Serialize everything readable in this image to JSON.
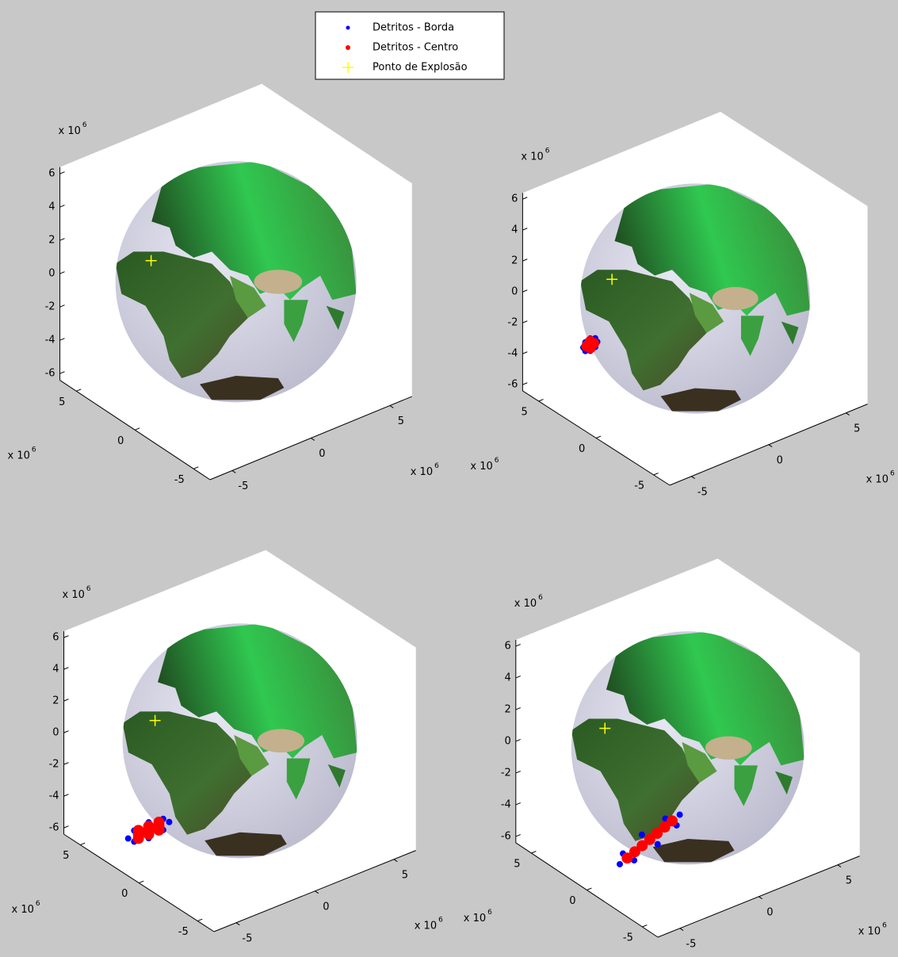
{
  "chart_data": [
    {
      "type": "scatter3d",
      "xlim": [
        -6.4,
        6.4
      ],
      "ylim": [
        -6.4,
        6.4
      ],
      "zlim": [
        -6.4,
        6.4
      ],
      "xticks": [
        -5,
        0,
        5
      ],
      "yticks": [
        -5,
        0,
        5
      ],
      "zticks": [
        -6,
        -4,
        -2,
        0,
        2,
        4,
        6
      ],
      "exponent_label": "x 10",
      "exponent": "6",
      "legend": "north",
      "series": [
        {
          "name": "Detritos - Borda",
          "color": "#0000ff",
          "x": [],
          "y": [],
          "z": []
        },
        {
          "name": "Detritos - Centro",
          "color": "#ff0000",
          "x": [],
          "y": [],
          "z": []
        },
        {
          "name": "Ponto de Explosão",
          "color": "#ffff00",
          "x": [
            -3.05
          ],
          "y": [
            3.13
          ],
          "z": [
            1
          ]
        }
      ]
    },
    {
      "type": "scatter3d",
      "xlim": [
        -6.4,
        6.4
      ],
      "ylim": [
        -6.4,
        6.4
      ],
      "zlim": [
        -6.4,
        6.4
      ],
      "xticks": [
        -5,
        0,
        5
      ],
      "yticks": [
        -5,
        0,
        5
      ],
      "zticks": [
        -6,
        -4,
        -2,
        0,
        2,
        4,
        6
      ],
      "exponent_label": "x 10",
      "exponent": "6",
      "series": [
        {
          "color": "#0000ff",
          "x": [
            -4.1,
            -4.23,
            -4.55,
            -4.87,
            -5,
            -4.87,
            -4.55,
            -4.23
          ],
          "y": [
            3,
            3,
            3,
            3,
            3,
            3,
            3,
            3
          ],
          "z": [
            -2.55,
            -2.27,
            -2.15,
            -2.27,
            -2.55,
            -2.83,
            -2.95,
            -2.83
          ]
        },
        {
          "color": "#ff0000",
          "x": [
            -4.55,
            -4.33,
            -4.77,
            -4.55,
            -4.55
          ],
          "y": [
            3,
            3,
            3,
            3,
            3
          ],
          "z": [
            -2.55,
            -2.55,
            -2.55,
            -2.35,
            -2.75
          ]
        },
        {
          "color": "#ffff00",
          "x": [
            -3.05
          ],
          "y": [
            3.13
          ],
          "z": [
            1
          ]
        }
      ]
    },
    {
      "type": "scatter3d",
      "xlim": [
        -6.4,
        6.4
      ],
      "ylim": [
        -6.4,
        6.4
      ],
      "zlim": [
        -6.4,
        6.4
      ],
      "xticks": [
        -5,
        0,
        5
      ],
      "yticks": [
        -5,
        0,
        5
      ],
      "zticks": [
        -6,
        -4,
        -2,
        0,
        2,
        4,
        6
      ],
      "exponent_label": "x 10",
      "exponent": "6",
      "series": [
        {
          "color": "#0000ff",
          "x": [
            -2.25,
            -2.63,
            -3.55,
            -4.47,
            -4.85,
            -4.47,
            -3.55,
            -2.63
          ],
          "y": [
            3,
            3,
            3,
            3,
            3,
            3,
            3,
            3
          ],
          "z": [
            -5.66,
            -5.31,
            -5.16,
            -5.31,
            -5.66,
            -6.01,
            -6.16,
            -6.01
          ]
        },
        {
          "color": "#ff0000",
          "x": [
            -3.55,
            -2.9,
            -4.2,
            -3.55,
            -3.55,
            -2.9,
            -4.2,
            -2.9,
            -4.2
          ],
          "y": [
            3,
            3,
            3,
            3,
            3,
            3,
            3,
            3,
            3
          ],
          "z": [
            -5.66,
            -5.66,
            -5.66,
            -5.41,
            -5.91,
            -5.41,
            -5.91,
            -5.91,
            -5.41
          ]
        },
        {
          "color": "#ffff00",
          "x": [
            -3.05
          ],
          "y": [
            3.13
          ],
          "z": [
            1
          ]
        }
      ]
    },
    {
      "type": "scatter3d",
      "xlim": [
        -6.4,
        6.4
      ],
      "ylim": [
        -6.4,
        6.4
      ],
      "zlim": [
        -6.4,
        6.4
      ],
      "xticks": [
        -5,
        0,
        5
      ],
      "yticks": [
        -5,
        0,
        5
      ],
      "zticks": [
        -6,
        -4,
        -2,
        0,
        2,
        4,
        6
      ],
      "exponent_label": "x 10",
      "exponent": "6",
      "series": [
        {
          "color": "#0000ff",
          "x": [
            -0.51,
            -0.71,
            -1.91,
            -3.4,
            -4.31,
            -4.11,
            -2.91,
            -1.42
          ],
          "y": [
            0,
            0,
            0,
            0,
            0,
            0,
            0,
            0
          ],
          "z": [
            -4.01,
            -4.6,
            -5.31,
            -5.73,
            -5.61,
            -5.02,
            -4.31,
            -3.89
          ]
        },
        {
          "color": "#ff0000",
          "x": [
            -2.41,
            -1.46,
            -3.36,
            -1.94,
            -2.89,
            -0.99,
            -3.84
          ],
          "y": [
            0,
            0,
            0,
            0,
            0,
            0,
            0
          ],
          "z": [
            -4.81,
            -4.41,
            -5.21,
            -4.61,
            -5.01,
            -4.21,
            -5.41
          ]
        },
        {
          "color": "#ffff00",
          "x": [
            -3.05
          ],
          "y": [
            3.13
          ],
          "z": [
            1
          ]
        }
      ]
    }
  ]
}
